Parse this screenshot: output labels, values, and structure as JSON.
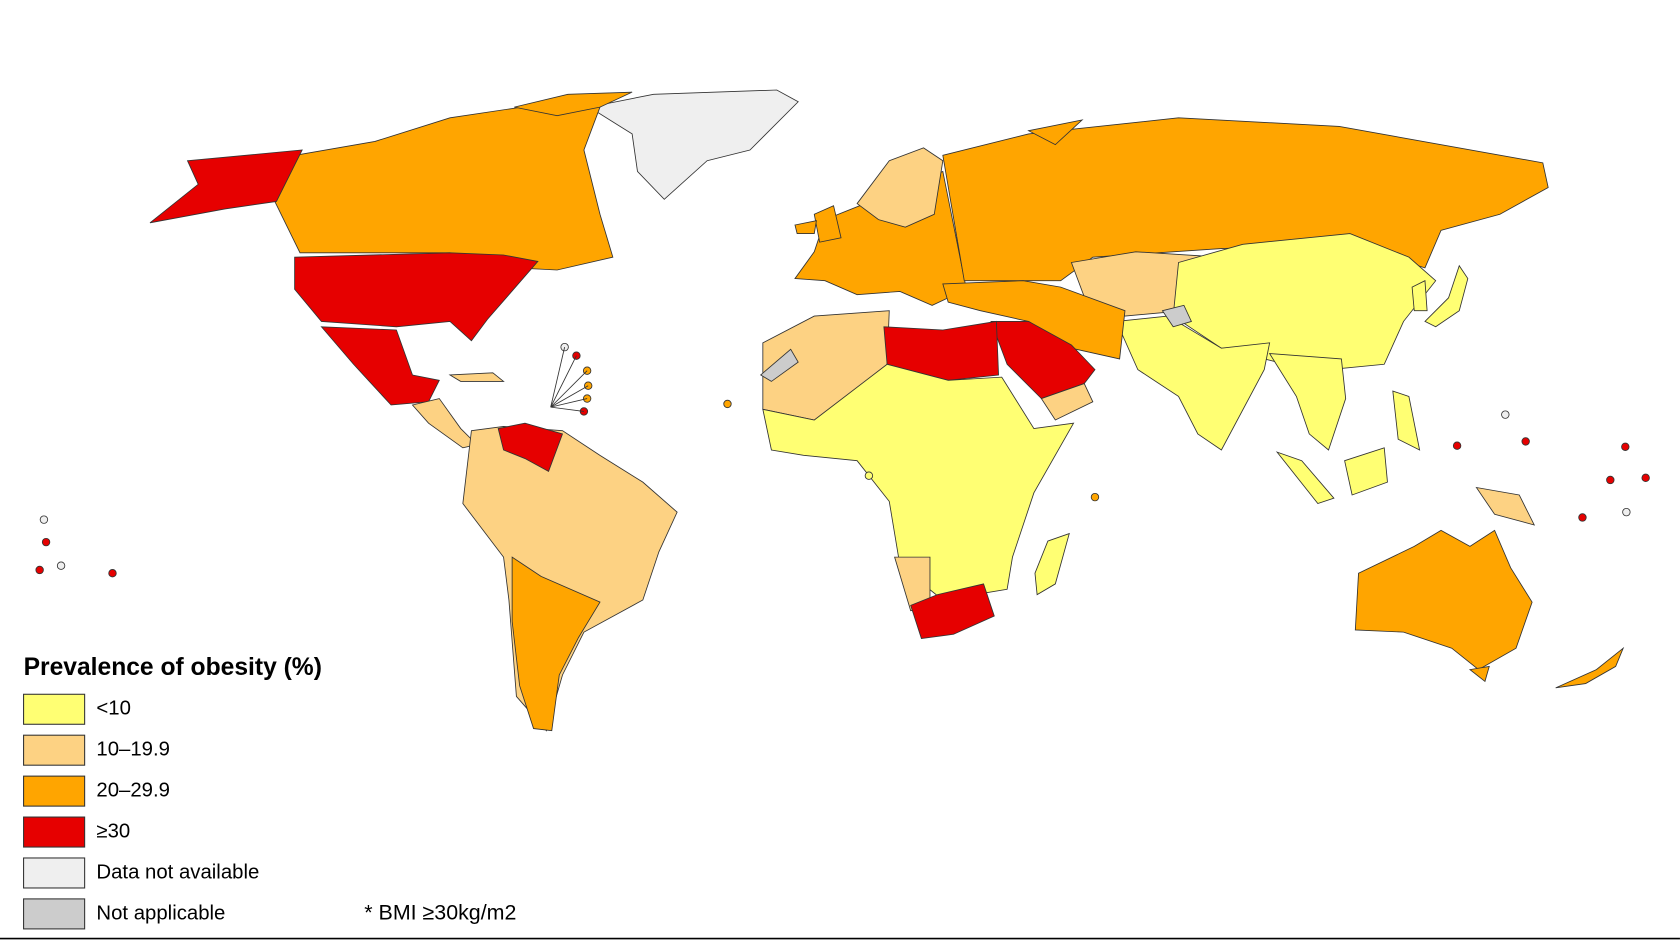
{
  "legend": {
    "title": "Prevalence of obesity (%)",
    "items": [
      {
        "label": "<10",
        "color": "#ffff73"
      },
      {
        "label": "10–19.9",
        "color": "#fdd283"
      },
      {
        "label": "20–29.9",
        "color": "#ffa500"
      },
      {
        "label": "≥30",
        "color": "#e60000"
      },
      {
        "label": "Data not available",
        "color": "#efefef"
      },
      {
        "label": "Not applicable",
        "color": "#cccccc"
      }
    ]
  },
  "footnote": "* BMI ≥30kg/m2"
}
